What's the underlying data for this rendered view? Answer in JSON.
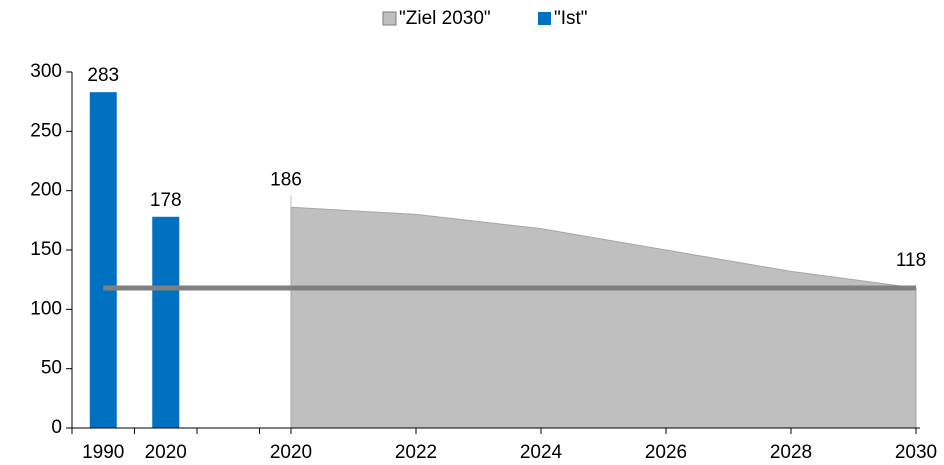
{
  "chart_data": {
    "type": "bar_area",
    "ylim": [
      0,
      300
    ],
    "yticks": [
      0,
      50,
      100,
      150,
      200,
      250,
      300
    ],
    "bars": {
      "name": "\"Ist\"",
      "color": "#0070c0",
      "categories": [
        "1990",
        "2020"
      ],
      "values": [
        283,
        178
      ]
    },
    "area": {
      "name": "\"Ziel 2030\"",
      "color": "#bfbfbf",
      "x": [
        2020,
        2022,
        2024,
        2026,
        2028,
        2030
      ],
      "values": [
        186,
        180,
        168,
        150,
        132,
        118
      ],
      "xlim": [
        2020,
        2030
      ],
      "xticks": [
        2020,
        2022,
        2024,
        2026,
        2028,
        2030
      ]
    },
    "reference_line": {
      "value": 118,
      "color": "#7f7f7f"
    }
  }
}
